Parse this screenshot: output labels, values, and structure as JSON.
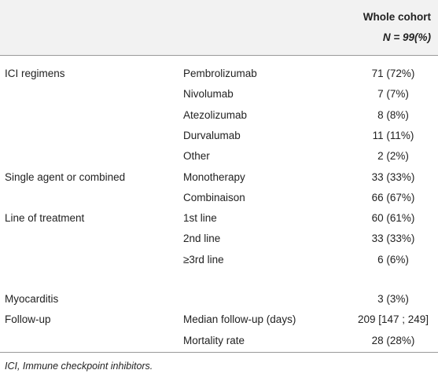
{
  "table": {
    "header": {
      "column_title": "Whole cohort",
      "column_subtitle": "N = 99(%)"
    },
    "rows": [
      [
        "ICI regimens",
        "Pembrolizumab",
        "71 (72%)"
      ],
      [
        null,
        "Nivolumab",
        "7 (7%)"
      ],
      [
        null,
        "Atezolizumab",
        "8 (8%)"
      ],
      [
        null,
        "Durvalumab",
        "11 (11%)"
      ],
      [
        null,
        "Other",
        "2 (2%)"
      ],
      [
        "Single agent or combined",
        "Monotherapy",
        "33 (33%)"
      ],
      [
        null,
        "Combinaison",
        "66 (67%)"
      ],
      [
        "Line of treatment",
        "1st line",
        "60 (61%)"
      ],
      [
        null,
        "2nd line",
        "33 (33%)"
      ],
      [
        null,
        "≥3rd line",
        "6 (6%)"
      ],
      [
        "Myocarditis",
        null,
        "3 (3%)"
      ],
      [
        "Follow-up",
        "Median follow-up (days)",
        "209 [147 ; 249]"
      ],
      [
        null,
        "Mortality rate",
        "28 (28%)"
      ]
    ],
    "footnote": "ICI, Immune checkpoint inhibitors."
  }
}
